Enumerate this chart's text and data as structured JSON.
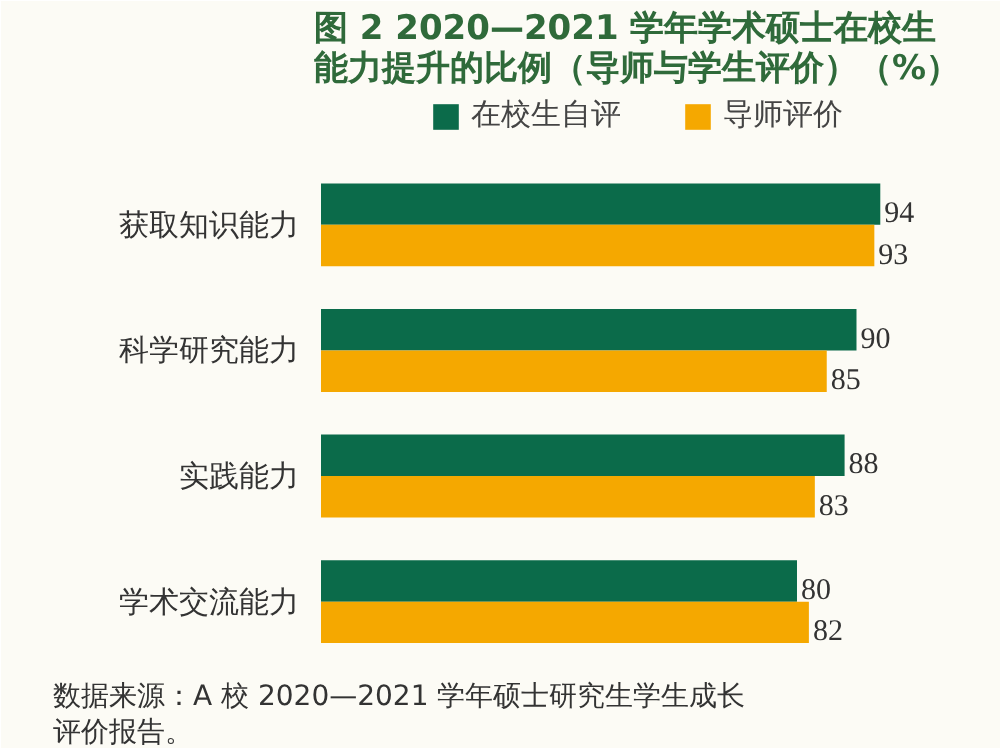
{
  "chart_data": {
    "type": "bar",
    "orientation": "horizontal",
    "title": "图 2  2020—2021 学年学术硕士在校生能力提升的比例（导师与学生评价）（%）",
    "categories": [
      "获取知识能力",
      "科学研究能力",
      "实践能力",
      "学术交流能力"
    ],
    "series": [
      {
        "name": "在校生自评",
        "color": "#0b6b4a",
        "values": [
          94,
          90,
          88,
          80
        ]
      },
      {
        "name": "导师评价",
        "color": "#f5a800",
        "values": [
          93,
          85,
          83,
          82
        ]
      }
    ],
    "data_labels": true,
    "legend": "top",
    "annotations": [
      "数据来源：A 校 2020—2021 学年硕士研究生学生成长评价报告。"
    ]
  }
}
